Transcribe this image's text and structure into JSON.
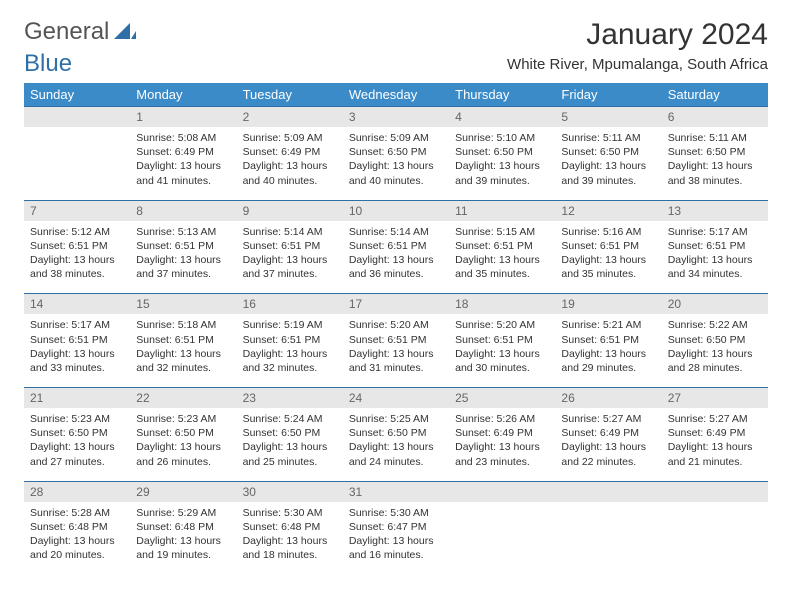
{
  "brand": {
    "general": "General",
    "blue": "Blue"
  },
  "colors": {
    "header_bg": "#3b8bc9",
    "header_fg": "#ffffff",
    "daynum_bg": "#e7e7e7",
    "daynum_fg": "#666666",
    "rule": "#2f6fa8",
    "text": "#333333",
    "brand_gray": "#555555",
    "brand_blue": "#2f6fa8"
  },
  "fonts": {
    "title_size_pt": 22,
    "subtitle_size_pt": 11,
    "weekday_size_pt": 10,
    "daynum_size_pt": 9,
    "detail_size_pt": 8
  },
  "title": "January 2024",
  "subtitle": "White River, Mpumalanga, South Africa",
  "weekdays": [
    "Sunday",
    "Monday",
    "Tuesday",
    "Wednesday",
    "Thursday",
    "Friday",
    "Saturday"
  ],
  "weeks": [
    {
      "nums": [
        "",
        "1",
        "2",
        "3",
        "4",
        "5",
        "6"
      ],
      "cells": [
        "",
        "Sunrise: 5:08 AM\nSunset: 6:49 PM\nDaylight: 13 hours and 41 minutes.",
        "Sunrise: 5:09 AM\nSunset: 6:49 PM\nDaylight: 13 hours and 40 minutes.",
        "Sunrise: 5:09 AM\nSunset: 6:50 PM\nDaylight: 13 hours and 40 minutes.",
        "Sunrise: 5:10 AM\nSunset: 6:50 PM\nDaylight: 13 hours and 39 minutes.",
        "Sunrise: 5:11 AM\nSunset: 6:50 PM\nDaylight: 13 hours and 39 minutes.",
        "Sunrise: 5:11 AM\nSunset: 6:50 PM\nDaylight: 13 hours and 38 minutes."
      ]
    },
    {
      "nums": [
        "7",
        "8",
        "9",
        "10",
        "11",
        "12",
        "13"
      ],
      "cells": [
        "Sunrise: 5:12 AM\nSunset: 6:51 PM\nDaylight: 13 hours and 38 minutes.",
        "Sunrise: 5:13 AM\nSunset: 6:51 PM\nDaylight: 13 hours and 37 minutes.",
        "Sunrise: 5:14 AM\nSunset: 6:51 PM\nDaylight: 13 hours and 37 minutes.",
        "Sunrise: 5:14 AM\nSunset: 6:51 PM\nDaylight: 13 hours and 36 minutes.",
        "Sunrise: 5:15 AM\nSunset: 6:51 PM\nDaylight: 13 hours and 35 minutes.",
        "Sunrise: 5:16 AM\nSunset: 6:51 PM\nDaylight: 13 hours and 35 minutes.",
        "Sunrise: 5:17 AM\nSunset: 6:51 PM\nDaylight: 13 hours and 34 minutes."
      ]
    },
    {
      "nums": [
        "14",
        "15",
        "16",
        "17",
        "18",
        "19",
        "20"
      ],
      "cells": [
        "Sunrise: 5:17 AM\nSunset: 6:51 PM\nDaylight: 13 hours and 33 minutes.",
        "Sunrise: 5:18 AM\nSunset: 6:51 PM\nDaylight: 13 hours and 32 minutes.",
        "Sunrise: 5:19 AM\nSunset: 6:51 PM\nDaylight: 13 hours and 32 minutes.",
        "Sunrise: 5:20 AM\nSunset: 6:51 PM\nDaylight: 13 hours and 31 minutes.",
        "Sunrise: 5:20 AM\nSunset: 6:51 PM\nDaylight: 13 hours and 30 minutes.",
        "Sunrise: 5:21 AM\nSunset: 6:51 PM\nDaylight: 13 hours and 29 minutes.",
        "Sunrise: 5:22 AM\nSunset: 6:50 PM\nDaylight: 13 hours and 28 minutes."
      ]
    },
    {
      "nums": [
        "21",
        "22",
        "23",
        "24",
        "25",
        "26",
        "27"
      ],
      "cells": [
        "Sunrise: 5:23 AM\nSunset: 6:50 PM\nDaylight: 13 hours and 27 minutes.",
        "Sunrise: 5:23 AM\nSunset: 6:50 PM\nDaylight: 13 hours and 26 minutes.",
        "Sunrise: 5:24 AM\nSunset: 6:50 PM\nDaylight: 13 hours and 25 minutes.",
        "Sunrise: 5:25 AM\nSunset: 6:50 PM\nDaylight: 13 hours and 24 minutes.",
        "Sunrise: 5:26 AM\nSunset: 6:49 PM\nDaylight: 13 hours and 23 minutes.",
        "Sunrise: 5:27 AM\nSunset: 6:49 PM\nDaylight: 13 hours and 22 minutes.",
        "Sunrise: 5:27 AM\nSunset: 6:49 PM\nDaylight: 13 hours and 21 minutes."
      ]
    },
    {
      "nums": [
        "28",
        "29",
        "30",
        "31",
        "",
        "",
        ""
      ],
      "cells": [
        "Sunrise: 5:28 AM\nSunset: 6:48 PM\nDaylight: 13 hours and 20 minutes.",
        "Sunrise: 5:29 AM\nSunset: 6:48 PM\nDaylight: 13 hours and 19 minutes.",
        "Sunrise: 5:30 AM\nSunset: 6:48 PM\nDaylight: 13 hours and 18 minutes.",
        "Sunrise: 5:30 AM\nSunset: 6:47 PM\nDaylight: 13 hours and 16 minutes.",
        "",
        "",
        ""
      ]
    }
  ]
}
